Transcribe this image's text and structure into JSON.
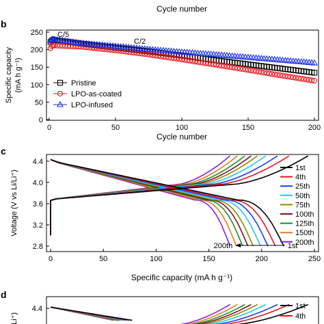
{
  "top_fragment": {
    "xlabel": "Cycle number"
  },
  "panel_b": {
    "label": "b",
    "chart_data": {
      "type": "scatter",
      "xlabel": "Cycle number",
      "ylabel_line1": "Specific capacity",
      "ylabel_line2": "(mA h g⁻¹)",
      "xlim": [
        0,
        200
      ],
      "ylim": [
        0,
        250
      ],
      "xticks": [
        0,
        50,
        100,
        150,
        200
      ],
      "yticks": [
        0,
        50,
        100,
        150,
        200,
        250
      ],
      "annotations": [
        "C/5",
        "C/2"
      ],
      "legend_position": "bottom-left",
      "series": [
        {
          "name": "Pristine",
          "color": "#000000",
          "marker": "square",
          "x": [
            1,
            2,
            3,
            25,
            50,
            75,
            100,
            125,
            150,
            175,
            200
          ],
          "y": [
            222,
            226,
            228,
            217,
            206,
            195,
            183,
            170,
            158,
            146,
            134
          ]
        },
        {
          "name": "LPO-as-coated",
          "color": "#e8141c",
          "marker": "circle",
          "x": [
            1,
            2,
            3,
            25,
            50,
            75,
            100,
            125,
            150,
            175,
            200
          ],
          "y": [
            204,
            210,
            212,
            208,
            198,
            186,
            172,
            157,
            142,
            126,
            111
          ]
        },
        {
          "name": "LPO-infused",
          "color": "#1a2ee8",
          "marker": "triangle",
          "x": [
            1,
            2,
            3,
            25,
            50,
            75,
            100,
            125,
            150,
            175,
            200
          ],
          "y": [
            226,
            229,
            230,
            218,
            210,
            201,
            193,
            186,
            178,
            170,
            162
          ]
        }
      ]
    }
  },
  "panel_c": {
    "label": "c",
    "chart_data": {
      "type": "line",
      "xlabel": "Specific capacity (mA h g⁻¹)",
      "ylabel": "Voltage (V vs Li/Li⁺)",
      "xlim": [
        0,
        250
      ],
      "ylim": [
        2.8,
        4.5
      ],
      "xticks": [
        0,
        50,
        100,
        150,
        200,
        250
      ],
      "yticks": [
        2.8,
        3.2,
        3.6,
        4.0,
        4.4
      ],
      "yticklabels": [
        "2.8",
        "3.2",
        "3.6",
        "4.0",
        "4.4"
      ],
      "legend_position": "right",
      "arrow_labels": [
        "200th",
        "1st"
      ],
      "series": [
        {
          "name": "1st",
          "color": "#000000",
          "charge_end": 244,
          "discharge_end": 221
        },
        {
          "name": "4th",
          "color": "#e8141c",
          "charge_end": 226,
          "discharge_end": 213
        },
        {
          "name": "25th",
          "color": "#1a3cf0",
          "charge_end": 215,
          "discharge_end": 206
        },
        {
          "name": "50th",
          "color": "#22c8e8",
          "charge_end": 204,
          "discharge_end": 199
        },
        {
          "name": "75th",
          "color": "#8a8a00",
          "charge_end": 196,
          "discharge_end": 192
        },
        {
          "name": "100th",
          "color": "#7a1020",
          "charge_end": 190,
          "discharge_end": 187
        },
        {
          "name": "125th",
          "color": "#1e8a2a",
          "charge_end": 184,
          "discharge_end": 182
        },
        {
          "name": "150th",
          "color": "#e87820",
          "charge_end": 177,
          "discharge_end": 176
        },
        {
          "name": "200th",
          "color": "#8a1ee0",
          "charge_end": 170,
          "discharge_end": 170
        }
      ]
    }
  },
  "panel_d": {
    "label": "d",
    "ylabel_fragment": "Li⁺)",
    "ytick": "4.4",
    "legend": [
      "1st",
      "4th"
    ],
    "legend_colors": [
      "#000000",
      "#e8141c"
    ]
  }
}
